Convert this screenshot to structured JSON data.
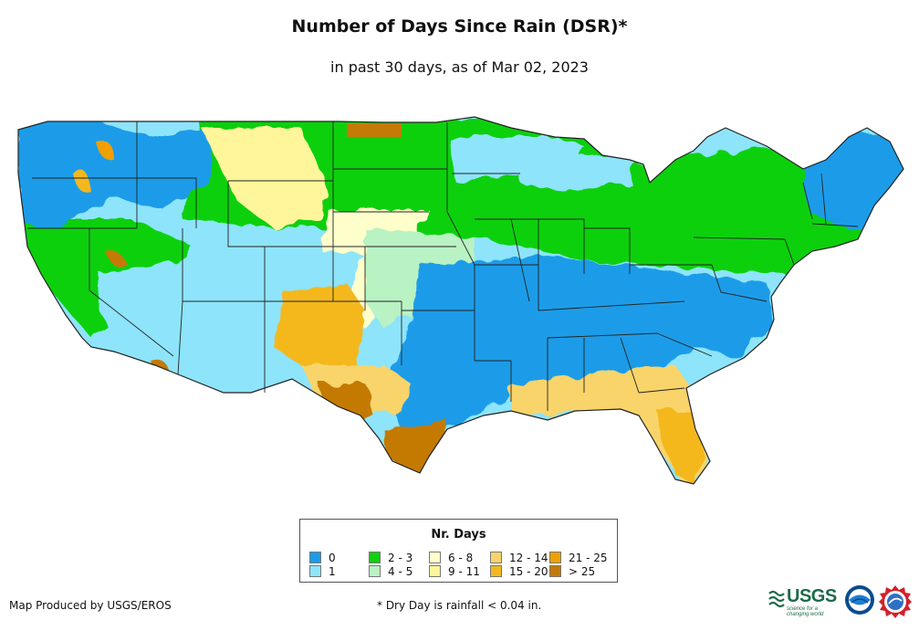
{
  "title": "Number of Days Since Rain (DSR)*",
  "subtitle": "in past 30 days, as of Mar 02, 2023",
  "legend": {
    "title": "Nr. Days",
    "items": [
      {
        "label": "0",
        "color": "#1a9ce8"
      },
      {
        "label": "1",
        "color": "#8ee4fa"
      },
      {
        "label": "2 - 3",
        "color": "#10d010"
      },
      {
        "label": "4 - 5",
        "color": "#b9f2c3"
      },
      {
        "label": "6 - 8",
        "color": "#ffffcc"
      },
      {
        "label": "9 - 11",
        "color": "#fff59a"
      },
      {
        "label": "12 - 14",
        "color": "#f8d46a"
      },
      {
        "label": "15 - 20",
        "color": "#f4b81e"
      },
      {
        "label": "21 - 25",
        "color": "#f0a000"
      },
      {
        "label": "> 25",
        "color": "#c47a06"
      }
    ]
  },
  "footer": {
    "producer": "Map Produced by USGS/EROS",
    "note": "* Dry Day is rainfall < 0.04 in."
  },
  "logos": {
    "usgs": "USGS",
    "usgs_tagline": "science for a changing world",
    "noaa": "noaa-logo",
    "nws": "nws-logo"
  }
}
